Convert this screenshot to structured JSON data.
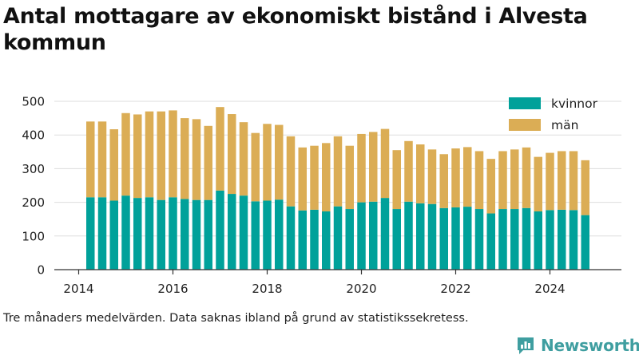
{
  "header": {
    "title": "Antal mottagare av ekonomiskt bistånd i Alvesta kommun"
  },
  "footnote": "Tre månaders medelvärden. Data saknas ibland på grund av statistikssekretess.",
  "brand": {
    "name": "Newsworthy",
    "icon": "newsworthy-logo-icon",
    "color": "#3f9ea0"
  },
  "colors": {
    "kvinnor": "#00a19a",
    "man": "#dbad55",
    "grid": "#dddddd",
    "axis": "#333333"
  },
  "chart_data": {
    "type": "bar",
    "stacked": true,
    "x_axis": {
      "type": "date",
      "ticks": [
        "2014",
        "2016",
        "2018",
        "2020",
        "2022",
        "2024"
      ],
      "range": [
        "2013-07-01",
        "2025-09-01"
      ]
    },
    "y_axis": {
      "ticks": [
        "0",
        "100",
        "200",
        "300",
        "400",
        "500"
      ],
      "ylim": [
        0,
        520
      ]
    },
    "grid": true,
    "legend_position": "top-right",
    "x": [
      "2014-04",
      "2014-07",
      "2014-10",
      "2015-01",
      "2015-04",
      "2015-07",
      "2015-10",
      "2016-01",
      "2016-04",
      "2016-07",
      "2016-10",
      "2017-01",
      "2017-04",
      "2017-07",
      "2017-10",
      "2018-01",
      "2018-04",
      "2018-07",
      "2018-10",
      "2019-01",
      "2019-04",
      "2019-07",
      "2019-10",
      "2020-01",
      "2020-04",
      "2020-07",
      "2020-10",
      "2021-01",
      "2021-04",
      "2021-07",
      "2021-10",
      "2022-01",
      "2022-04",
      "2022-07",
      "2022-10",
      "2023-01",
      "2023-04",
      "2023-07",
      "2023-10",
      "2024-01",
      "2024-04",
      "2024-07",
      "2024-10"
    ],
    "series": [
      {
        "name": "kvinnor",
        "color": "#00a19a",
        "values": [
          215,
          215,
          205,
          220,
          213,
          215,
          207,
          215,
          210,
          207,
          207,
          235,
          225,
          220,
          203,
          205,
          208,
          188,
          176,
          178,
          173,
          188,
          180,
          200,
          202,
          213,
          180,
          202,
          197,
          195,
          183,
          185,
          187,
          180,
          167,
          180,
          180,
          183,
          173,
          177,
          178,
          177,
          162
        ]
      },
      {
        "name": "män",
        "color": "#dbad55",
        "values": [
          225,
          225,
          212,
          245,
          248,
          255,
          263,
          258,
          240,
          240,
          220,
          248,
          237,
          218,
          203,
          228,
          222,
          208,
          187,
          190,
          203,
          208,
          188,
          203,
          207,
          205,
          175,
          180,
          175,
          162,
          160,
          175,
          177,
          172,
          162,
          172,
          177,
          180,
          162,
          170,
          174,
          175,
          163
        ]
      }
    ]
  }
}
